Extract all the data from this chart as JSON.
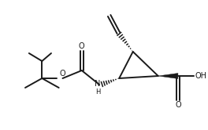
{
  "bg_color": "#ffffff",
  "line_color": "#1a1a1a",
  "lw": 1.4,
  "figsize": [
    2.64,
    1.66
  ],
  "dpi": 100,
  "xlim": [
    0,
    264
  ],
  "ylim": [
    0,
    166
  ]
}
